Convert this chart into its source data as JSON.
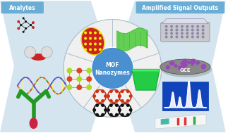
{
  "left_label": "Analytes",
  "right_label": "Amplified Signal Outputs",
  "center_label_line1": "MOF",
  "center_label_line2": "Nanozymes",
  "bg_color": "#ffffff",
  "arrow_blue": "#c2daea",
  "circle_edge": "#aabfcc",
  "label_box_color": "#6aaed6",
  "label_text_color": "#ffffff",
  "center_box_color": "#4a8fd0",
  "center_text_color": "#ffffff",
  "figsize": [
    3.23,
    1.89
  ],
  "dpi": 100
}
